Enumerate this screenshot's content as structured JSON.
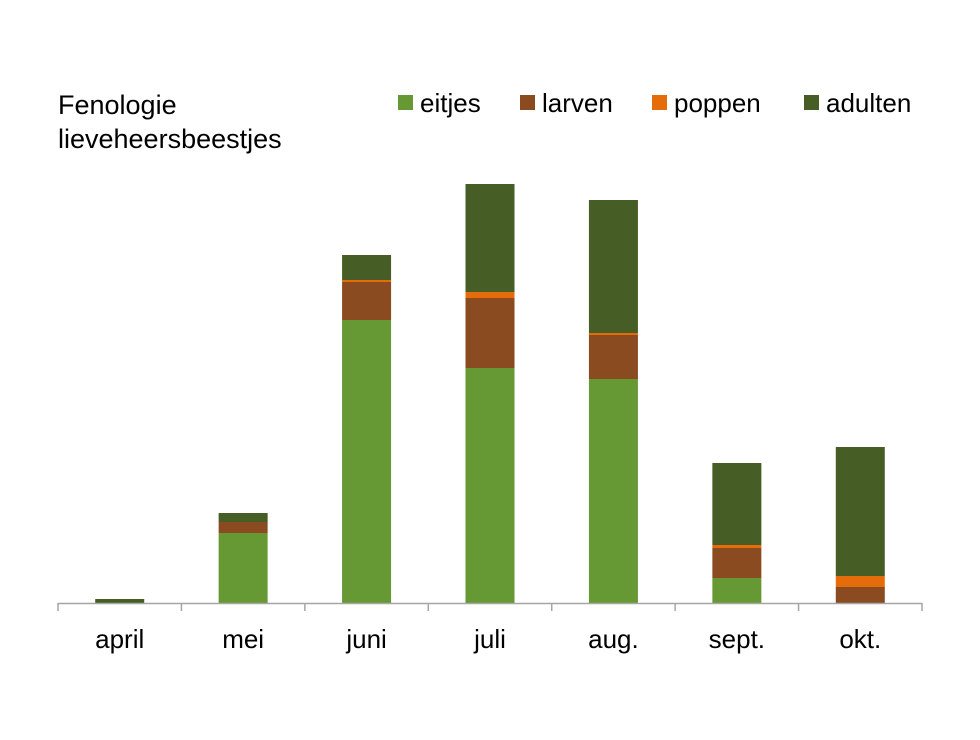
{
  "chart_data": {
    "type": "bar",
    "stacked": true,
    "title_lines": [
      "Fenologie",
      "lieveheersbeestjes"
    ],
    "xlabel": "",
    "ylabel": "",
    "categories": [
      "april",
      "mei",
      "juni",
      "juli",
      "aug.",
      "sept.",
      "okt."
    ],
    "ylim": [
      0,
      420
    ],
    "grid": false,
    "legend_position": "top-right",
    "series": [
      {
        "name": "eitjes",
        "color": "#669933",
        "values": [
          0,
          70,
          283,
          235,
          224,
          25,
          0
        ]
      },
      {
        "name": "larven",
        "color": "#8b4b21",
        "values": [
          0,
          11,
          38,
          70,
          44,
          30,
          16
        ]
      },
      {
        "name": "poppen",
        "color": "#e46c0a",
        "values": [
          0,
          0,
          2,
          6,
          2,
          3,
          11
        ]
      },
      {
        "name": "adulten",
        "color": "#465e25",
        "values": [
          4,
          9,
          25,
          108,
          133,
          82,
          129
        ]
      }
    ],
    "axis_color": "#a6a6a6"
  }
}
